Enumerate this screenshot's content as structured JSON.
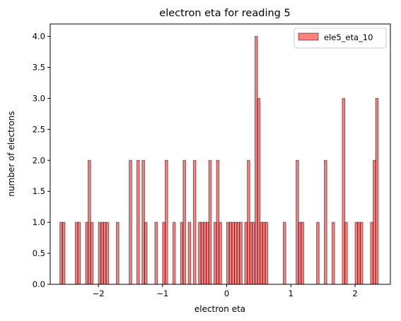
{
  "chart_data": {
    "type": "bar",
    "title": "electron eta for reading 5",
    "xlabel": "electron eta",
    "ylabel": "number of electrons",
    "xlim": [
      -2.75,
      2.55
    ],
    "ylim": [
      0,
      4.2
    ],
    "grid": false,
    "legend_position": "top-right",
    "x_ticks": [
      -2,
      -1,
      0,
      1,
      2
    ],
    "x_tick_labels": [
      "−2",
      "−1",
      "0",
      "1",
      "2"
    ],
    "y_ticks": [
      0,
      0.5,
      1.0,
      1.5,
      2.0,
      2.5,
      3.0,
      3.5,
      4.0
    ],
    "y_tick_labels": [
      "0.0",
      "0.5",
      "1.0",
      "1.5",
      "2.0",
      "2.5",
      "3.0",
      "3.5",
      "4.0"
    ],
    "bin_width": 0.04,
    "series": [
      {
        "name": "ele5_eta_10",
        "color": "#ff0000",
        "bars": [
          {
            "x": -2.58,
            "y": 1
          },
          {
            "x": -2.54,
            "y": 1
          },
          {
            "x": -2.34,
            "y": 1
          },
          {
            "x": -2.3,
            "y": 1
          },
          {
            "x": -2.18,
            "y": 1
          },
          {
            "x": -2.14,
            "y": 2
          },
          {
            "x": -2.1,
            "y": 1
          },
          {
            "x": -1.98,
            "y": 1
          },
          {
            "x": -1.94,
            "y": 1
          },
          {
            "x": -1.9,
            "y": 1
          },
          {
            "x": -1.86,
            "y": 1
          },
          {
            "x": -1.7,
            "y": 1
          },
          {
            "x": -1.5,
            "y": 2
          },
          {
            "x": -1.38,
            "y": 2
          },
          {
            "x": -1.3,
            "y": 2
          },
          {
            "x": -1.26,
            "y": 1
          },
          {
            "x": -1.1,
            "y": 1
          },
          {
            "x": -0.98,
            "y": 1
          },
          {
            "x": -0.94,
            "y": 2
          },
          {
            "x": -0.82,
            "y": 1
          },
          {
            "x": -0.7,
            "y": 1
          },
          {
            "x": -0.66,
            "y": 2
          },
          {
            "x": -0.58,
            "y": 1
          },
          {
            "x": -0.5,
            "y": 2
          },
          {
            "x": -0.42,
            "y": 1
          },
          {
            "x": -0.38,
            "y": 1
          },
          {
            "x": -0.34,
            "y": 1
          },
          {
            "x": -0.3,
            "y": 1
          },
          {
            "x": -0.26,
            "y": 2
          },
          {
            "x": -0.18,
            "y": 1
          },
          {
            "x": -0.14,
            "y": 2
          },
          {
            "x": -0.1,
            "y": 1
          },
          {
            "x": 0.02,
            "y": 1
          },
          {
            "x": 0.06,
            "y": 1
          },
          {
            "x": 0.1,
            "y": 1
          },
          {
            "x": 0.14,
            "y": 1
          },
          {
            "x": 0.18,
            "y": 1
          },
          {
            "x": 0.22,
            "y": 1
          },
          {
            "x": 0.3,
            "y": 1
          },
          {
            "x": 0.34,
            "y": 2
          },
          {
            "x": 0.38,
            "y": 1
          },
          {
            "x": 0.42,
            "y": 1
          },
          {
            "x": 0.46,
            "y": 4
          },
          {
            "x": 0.5,
            "y": 3
          },
          {
            "x": 0.54,
            "y": 1
          },
          {
            "x": 0.58,
            "y": 1
          },
          {
            "x": 0.62,
            "y": 1
          },
          {
            "x": 0.9,
            "y": 1
          },
          {
            "x": 1.1,
            "y": 2
          },
          {
            "x": 1.14,
            "y": 1
          },
          {
            "x": 1.18,
            "y": 1
          },
          {
            "x": 1.42,
            "y": 1
          },
          {
            "x": 1.54,
            "y": 2
          },
          {
            "x": 1.66,
            "y": 1
          },
          {
            "x": 1.82,
            "y": 3
          },
          {
            "x": 1.86,
            "y": 1
          },
          {
            "x": 2.02,
            "y": 1
          },
          {
            "x": 2.06,
            "y": 1
          },
          {
            "x": 2.1,
            "y": 1
          },
          {
            "x": 2.26,
            "y": 1
          },
          {
            "x": 2.3,
            "y": 2
          },
          {
            "x": 2.34,
            "y": 3
          }
        ]
      }
    ]
  }
}
